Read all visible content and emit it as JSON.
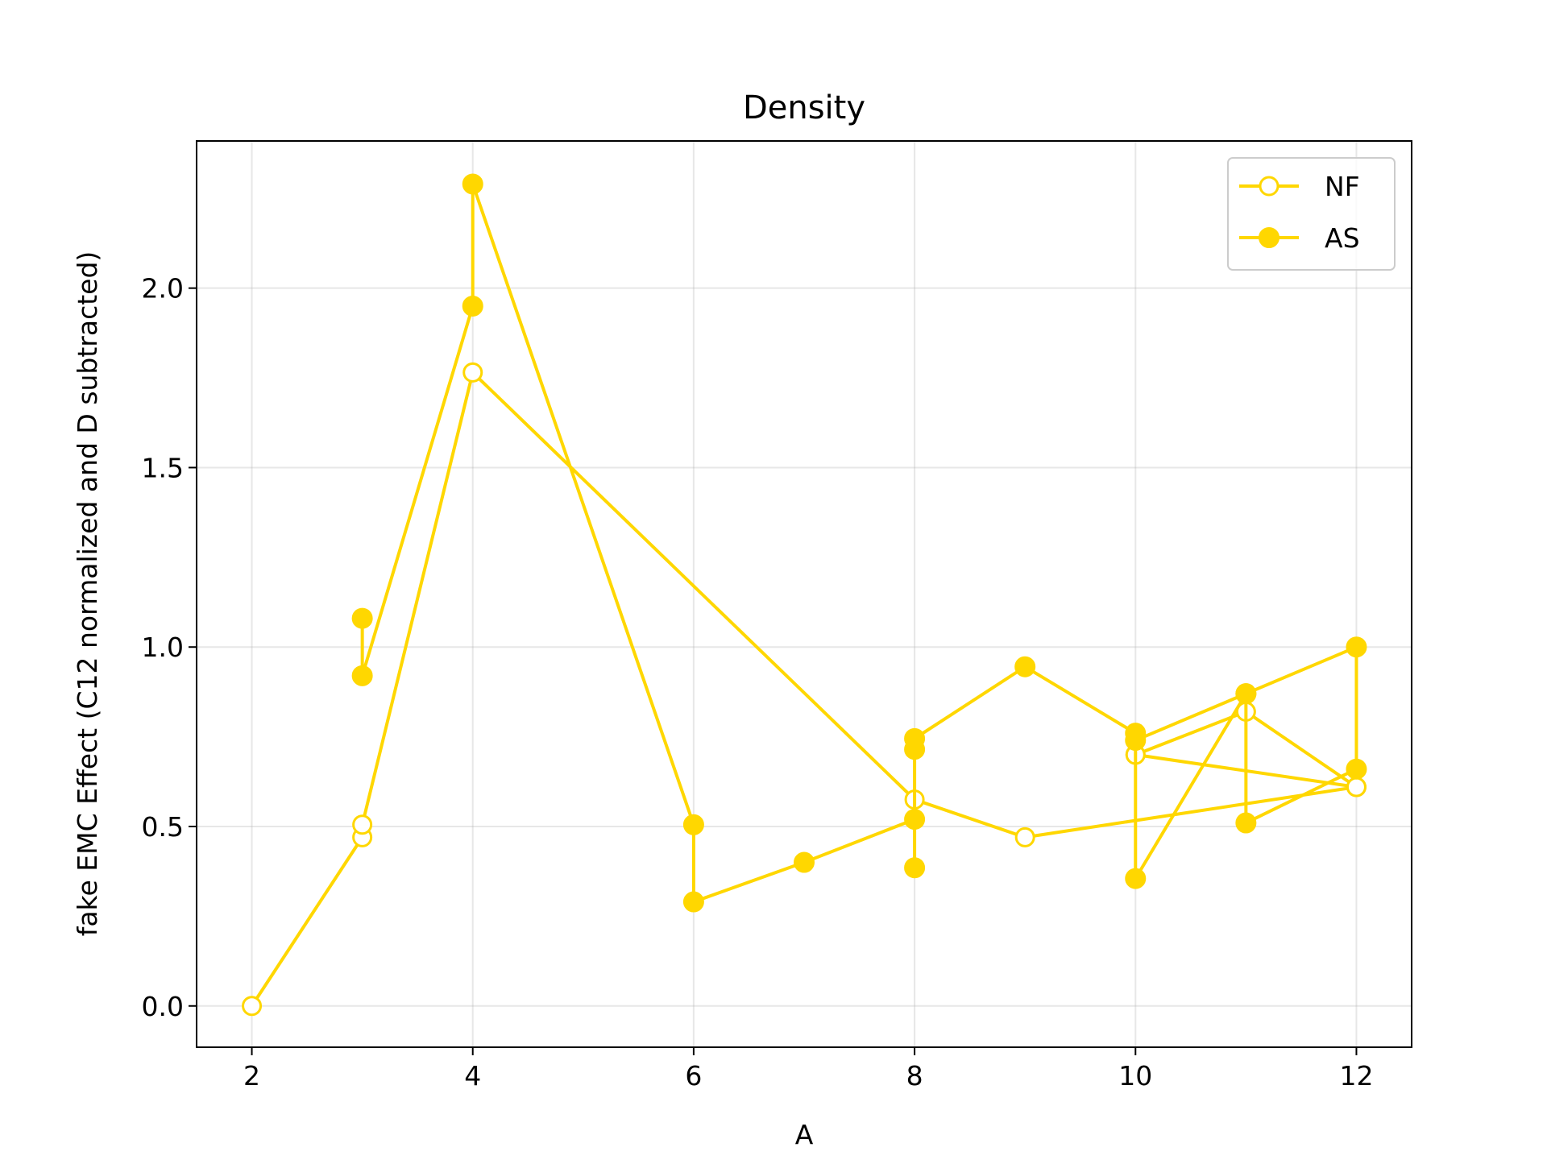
{
  "chart_data": {
    "type": "line",
    "title": "Density",
    "xlabel": "A",
    "ylabel": "fake EMC Effect (C12 normalized and D subtracted)",
    "xlim": [
      1.5,
      12.5
    ],
    "ylim": [
      -0.115,
      2.41
    ],
    "xticks": [
      2,
      4,
      6,
      8,
      10,
      12
    ],
    "xtick_labels": [
      "2",
      "4",
      "6",
      "8",
      "10",
      "12"
    ],
    "yticks": [
      0.0,
      0.5,
      1.0,
      1.5,
      2.0
    ],
    "ytick_labels": [
      "0.0",
      "0.5",
      "1.0",
      "1.5",
      "2.0"
    ],
    "grid": true,
    "color": "#FFD700",
    "legend_position": "top-right",
    "series": [
      {
        "name": "NF",
        "marker": "open-circle",
        "x": [
          2,
          3,
          3,
          4,
          8,
          9,
          12,
          11,
          10,
          10,
          12
        ],
        "y": [
          0.0,
          0.47,
          0.505,
          1.765,
          0.575,
          0.47,
          0.61,
          0.82,
          0.7,
          0.7,
          0.61
        ]
      },
      {
        "name": "AS",
        "marker": "filled-circle",
        "x": [
          3,
          3,
          4,
          4,
          6,
          6,
          7,
          8,
          8,
          8,
          8,
          9,
          10,
          10,
          11,
          11,
          12,
          12,
          10,
          11
        ],
        "y": [
          1.08,
          0.92,
          1.95,
          2.29,
          0.505,
          0.29,
          0.4,
          0.52,
          0.385,
          0.715,
          0.745,
          0.945,
          0.76,
          0.355,
          0.87,
          0.51,
          0.66,
          1.0,
          0.74,
          0.87
        ]
      }
    ]
  }
}
